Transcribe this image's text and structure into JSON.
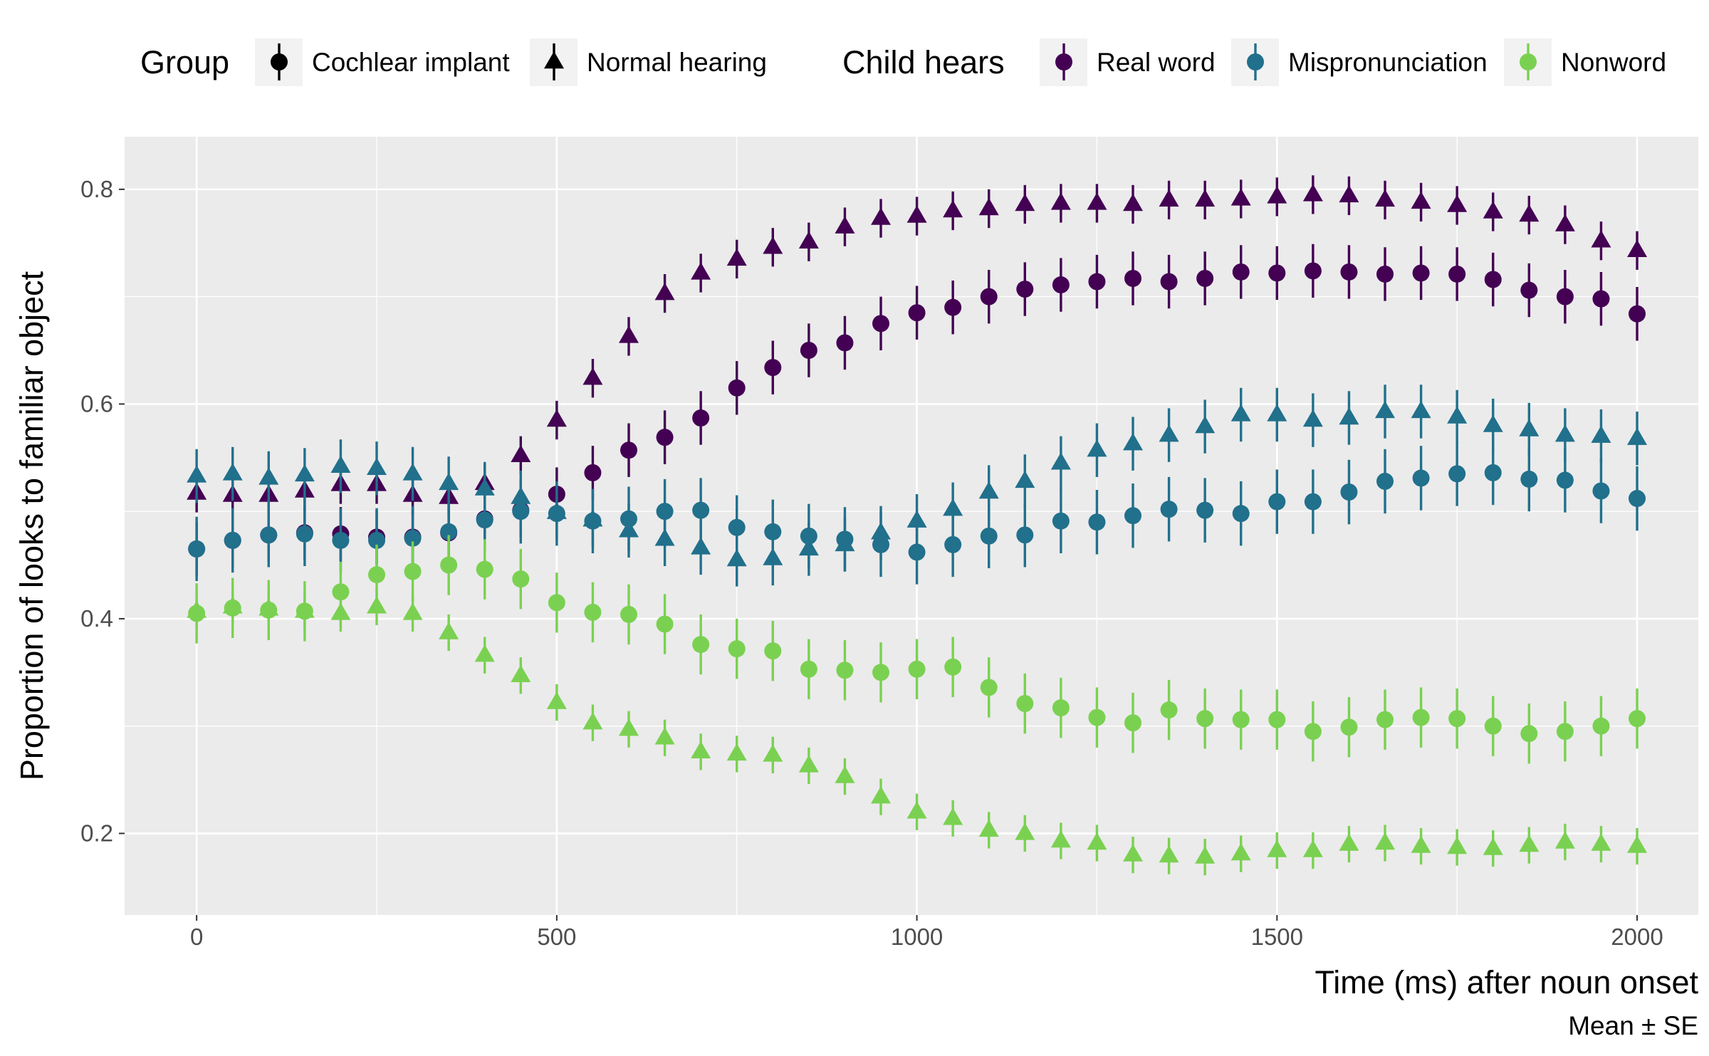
{
  "chart_data": {
    "type": "scatter",
    "xlabel": "Time (ms) after noun onset",
    "ylabel": "Proportion of looks to familiar object",
    "caption": "Mean ± SE",
    "xlim": [
      -100,
      2085
    ],
    "ylim": [
      0.124,
      0.849
    ],
    "x_ticks": [
      0,
      500,
      1000,
      1500,
      2000
    ],
    "x_tick_labels": [
      "0",
      "500",
      "1000",
      "1500",
      "2000"
    ],
    "y_ticks": [
      0.2,
      0.4,
      0.6,
      0.8
    ],
    "y_tick_labels": [
      "0.2",
      "0.4",
      "0.6",
      "0.8"
    ],
    "grid": true,
    "legend_position": "top",
    "legend": {
      "group_title": "Group",
      "group_entries": [
        {
          "label": "Cochlear implant",
          "shape": "circle"
        },
        {
          "label": "Normal hearing",
          "shape": "triangle"
        }
      ],
      "hears_title": "Child hears",
      "hears_entries": [
        {
          "label": "Real word",
          "color": "#440154"
        },
        {
          "label": "Mispronunciation",
          "color": "#21708C"
        },
        {
          "label": "Nonword",
          "color": "#7AD151"
        }
      ]
    },
    "x": [
      0,
      50,
      100,
      150,
      200,
      250,
      300,
      350,
      400,
      450,
      500,
      550,
      600,
      650,
      700,
      750,
      800,
      850,
      900,
      950,
      1000,
      1050,
      1100,
      1150,
      1200,
      1250,
      1300,
      1350,
      1400,
      1450,
      1500,
      1550,
      1600,
      1650,
      1700,
      1750,
      1800,
      1850,
      1900,
      1950,
      2000
    ],
    "series": [
      {
        "group": "Normal hearing",
        "hears": "Real word",
        "shape": "triangle",
        "color": "#440154",
        "values": [
          0.517,
          0.515,
          0.515,
          0.519,
          0.525,
          0.525,
          0.515,
          0.513,
          0.526,
          0.552,
          0.585,
          0.624,
          0.663,
          0.703,
          0.722,
          0.735,
          0.746,
          0.751,
          0.765,
          0.773,
          0.775,
          0.78,
          0.782,
          0.786,
          0.787,
          0.787,
          0.786,
          0.79,
          0.79,
          0.791,
          0.793,
          0.795,
          0.794,
          0.79,
          0.788,
          0.785,
          0.779,
          0.776,
          0.767,
          0.752,
          0.743
        ],
        "se": 0.018
      },
      {
        "group": "Cochlear implant",
        "hears": "Real word",
        "shape": "circle",
        "color": "#440154",
        "values": [
          0.465,
          0.473,
          0.478,
          0.48,
          0.479,
          0.476,
          0.476,
          0.48,
          0.493,
          0.501,
          0.516,
          0.536,
          0.557,
          0.569,
          0.587,
          0.615,
          0.634,
          0.65,
          0.657,
          0.675,
          0.685,
          0.69,
          0.7,
          0.707,
          0.711,
          0.714,
          0.717,
          0.714,
          0.717,
          0.723,
          0.722,
          0.724,
          0.723,
          0.721,
          0.722,
          0.721,
          0.716,
          0.706,
          0.7,
          0.698,
          0.684
        ],
        "se": 0.025
      },
      {
        "group": "Normal hearing",
        "hears": "Mispronunciation",
        "shape": "triangle",
        "color": "#21708C",
        "values": [
          0.533,
          0.535,
          0.531,
          0.534,
          0.542,
          0.54,
          0.535,
          0.526,
          0.521,
          0.513,
          0.499,
          0.492,
          0.482,
          0.474,
          0.466,
          0.455,
          0.456,
          0.465,
          0.469,
          0.48,
          0.491,
          0.502,
          0.518,
          0.528,
          0.545,
          0.557,
          0.563,
          0.571,
          0.579,
          0.59,
          0.59,
          0.585,
          0.587,
          0.593,
          0.593,
          0.588,
          0.58,
          0.576,
          0.571,
          0.57,
          0.568
        ],
        "se": 0.025
      },
      {
        "group": "Cochlear implant",
        "hears": "Mispronunciation",
        "shape": "circle",
        "color": "#21708C",
        "values": [
          0.465,
          0.473,
          0.478,
          0.479,
          0.473,
          0.473,
          0.475,
          0.481,
          0.492,
          0.5,
          0.498,
          0.491,
          0.493,
          0.5,
          0.501,
          0.485,
          0.481,
          0.477,
          0.474,
          0.469,
          0.462,
          0.469,
          0.477,
          0.478,
          0.491,
          0.49,
          0.496,
          0.502,
          0.501,
          0.498,
          0.509,
          0.509,
          0.518,
          0.528,
          0.531,
          0.535,
          0.536,
          0.53,
          0.529,
          0.519,
          0.512
        ],
        "se": 0.03
      },
      {
        "group": "Cochlear implant",
        "hears": "Nonword",
        "shape": "circle",
        "color": "#7AD151",
        "values": [
          0.405,
          0.41,
          0.408,
          0.407,
          0.425,
          0.441,
          0.444,
          0.45,
          0.446,
          0.437,
          0.415,
          0.406,
          0.404,
          0.395,
          0.376,
          0.372,
          0.37,
          0.353,
          0.352,
          0.35,
          0.353,
          0.355,
          0.336,
          0.321,
          0.317,
          0.308,
          0.303,
          0.315,
          0.307,
          0.306,
          0.306,
          0.295,
          0.299,
          0.306,
          0.308,
          0.307,
          0.3,
          0.293,
          0.295,
          0.3,
          0.307
        ],
        "se": 0.028
      },
      {
        "group": "Normal hearing",
        "hears": "Nonword",
        "shape": "triangle",
        "color": "#7AD151",
        "values": [
          0.407,
          0.411,
          0.409,
          0.407,
          0.405,
          0.411,
          0.405,
          0.387,
          0.366,
          0.347,
          0.322,
          0.303,
          0.297,
          0.289,
          0.276,
          0.274,
          0.273,
          0.263,
          0.253,
          0.234,
          0.22,
          0.214,
          0.203,
          0.2,
          0.193,
          0.191,
          0.18,
          0.179,
          0.178,
          0.181,
          0.184,
          0.184,
          0.19,
          0.191,
          0.188,
          0.187,
          0.186,
          0.189,
          0.192,
          0.19,
          0.188
        ],
        "se": 0.017
      }
    ]
  }
}
